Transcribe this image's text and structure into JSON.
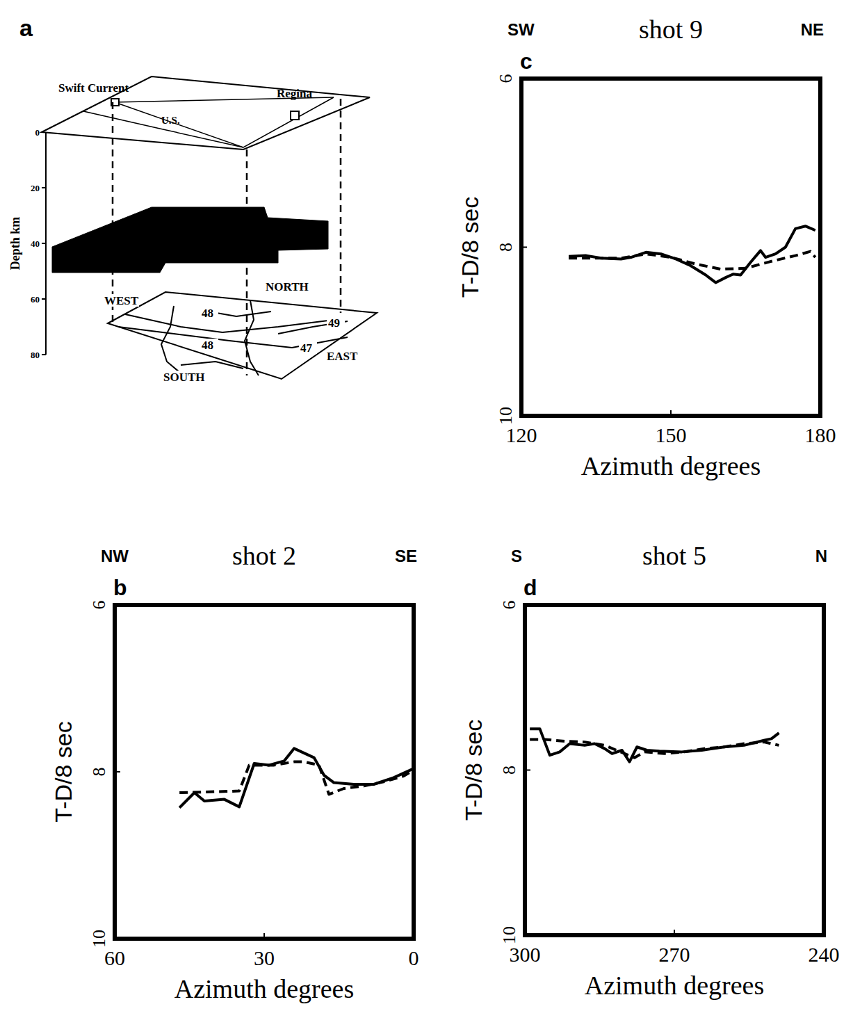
{
  "diagram": {
    "panel_label": "a",
    "axis_label": "Depth km",
    "depth_lim": [
      0,
      80
    ],
    "depth_ticks": [
      0,
      20,
      40,
      60,
      80
    ],
    "places": [
      "Swift Current",
      "Regina",
      "U.S."
    ],
    "directions": [
      "WEST",
      "NORTH",
      "SOUTH",
      "EAST"
    ],
    "latitudes": [
      "48",
      "49",
      "48",
      "47"
    ]
  },
  "chart_data": [
    {
      "type": "line",
      "panel_label": "b",
      "title": "shot 2",
      "direction_labels": [
        "NW",
        "SE"
      ],
      "x_label": "Azimuth degrees",
      "y_label": "T-D/8 sec",
      "xlim": [
        60,
        0
      ],
      "xticks": [
        60,
        30,
        0
      ],
      "ylim": [
        10,
        6
      ],
      "yticks": [
        6,
        8,
        10
      ],
      "series": [
        {
          "line_style": "solid",
          "color": "#000000",
          "x": [
            47,
            44,
            42,
            38,
            35,
            32,
            29,
            26,
            24,
            20,
            18,
            16,
            12,
            8,
            4,
            0
          ],
          "values": [
            8.43,
            8.25,
            8.35,
            8.33,
            8.42,
            7.9,
            7.92,
            7.87,
            7.72,
            7.83,
            8.04,
            8.13,
            8.15,
            8.15,
            8.07,
            7.96
          ]
        },
        {
          "line_style": "dashed",
          "color": "#000000",
          "x": [
            47,
            35,
            33,
            28,
            24,
            22,
            19,
            17,
            14,
            10,
            6,
            2,
            0
          ],
          "values": [
            8.25,
            8.23,
            7.92,
            7.92,
            7.88,
            7.88,
            7.92,
            8.27,
            8.2,
            8.17,
            8.12,
            8.05,
            7.98
          ]
        }
      ]
    },
    {
      "type": "line",
      "panel_label": "c",
      "title": "shot 9",
      "direction_labels": [
        "SW",
        "NE"
      ],
      "x_label": "Azimuth degrees",
      "y_label": "T-D/8 sec",
      "xlim": [
        120,
        180
      ],
      "xticks": [
        120,
        150,
        180
      ],
      "ylim": [
        10,
        6
      ],
      "yticks": [
        6,
        8,
        10
      ],
      "series": [
        {
          "line_style": "solid",
          "color": "#000000",
          "x": [
            129.5,
            133,
            136,
            140,
            142,
            145,
            148,
            151,
            154,
            157,
            159,
            161,
            162.5,
            164,
            166,
            168,
            169,
            171,
            173,
            175,
            177,
            179
          ],
          "values": [
            8.11,
            8.1,
            8.13,
            8.14,
            8.12,
            8.06,
            8.08,
            8.14,
            8.22,
            8.33,
            8.42,
            8.36,
            8.32,
            8.33,
            8.18,
            8.04,
            8.12,
            8.08,
            8.0,
            7.78,
            7.75,
            7.8
          ]
        },
        {
          "line_style": "dashed",
          "color": "#000000",
          "x": [
            129.5,
            140,
            145,
            150,
            155,
            160,
            165,
            170,
            175,
            178,
            179
          ],
          "values": [
            8.13,
            8.13,
            8.08,
            8.12,
            8.2,
            8.26,
            8.25,
            8.17,
            8.1,
            8.05,
            8.12
          ]
        }
      ]
    },
    {
      "type": "line",
      "panel_label": "d",
      "title": "shot 5",
      "direction_labels": [
        "S",
        "N"
      ],
      "x_label": "Azimuth degrees",
      "y_label": "T-D/8 sec",
      "xlim": [
        300,
        240
      ],
      "xticks": [
        300,
        270,
        240
      ],
      "ylim": [
        10,
        6
      ],
      "yticks": [
        6,
        8,
        10
      ],
      "series": [
        {
          "line_style": "solid",
          "color": "#000000",
          "x": [
            299,
            297,
            295,
            293,
            291,
            288,
            286,
            284,
            282.5,
            280.5,
            279,
            277.5,
            275.5,
            273,
            268.5,
            264.5,
            260,
            256,
            252,
            250.5,
            249
          ],
          "values": [
            7.5,
            7.5,
            7.82,
            7.78,
            7.68,
            7.7,
            7.68,
            7.74,
            7.8,
            7.76,
            7.9,
            7.72,
            7.76,
            7.77,
            7.78,
            7.76,
            7.72,
            7.7,
            7.64,
            7.62,
            7.55
          ]
        },
        {
          "line_style": "dashed",
          "color": "#000000",
          "x": [
            299,
            296,
            292,
            288,
            284,
            280,
            278,
            276,
            272,
            268,
            264,
            260,
            256,
            252,
            249
          ],
          "values": [
            7.63,
            7.63,
            7.65,
            7.66,
            7.7,
            7.8,
            7.85,
            7.78,
            7.8,
            7.78,
            7.74,
            7.72,
            7.68,
            7.66,
            7.7
          ]
        }
      ]
    }
  ]
}
